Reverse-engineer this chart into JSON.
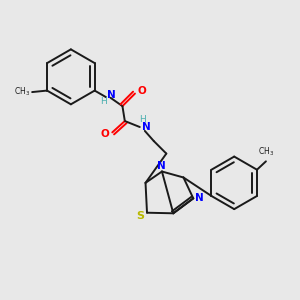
{
  "bg_color": "#E8E8E8",
  "bond_color": "#1a1a1a",
  "N_color": "#0000FF",
  "O_color": "#FF0000",
  "S_color": "#B8B800",
  "H_color": "#4AAFAF",
  "figsize": [
    3.0,
    3.0
  ],
  "dpi": 100,
  "xlim": [
    0,
    10
  ],
  "ylim": [
    0,
    10
  ],
  "lw": 1.4,
  "inner_lw": 1.2
}
